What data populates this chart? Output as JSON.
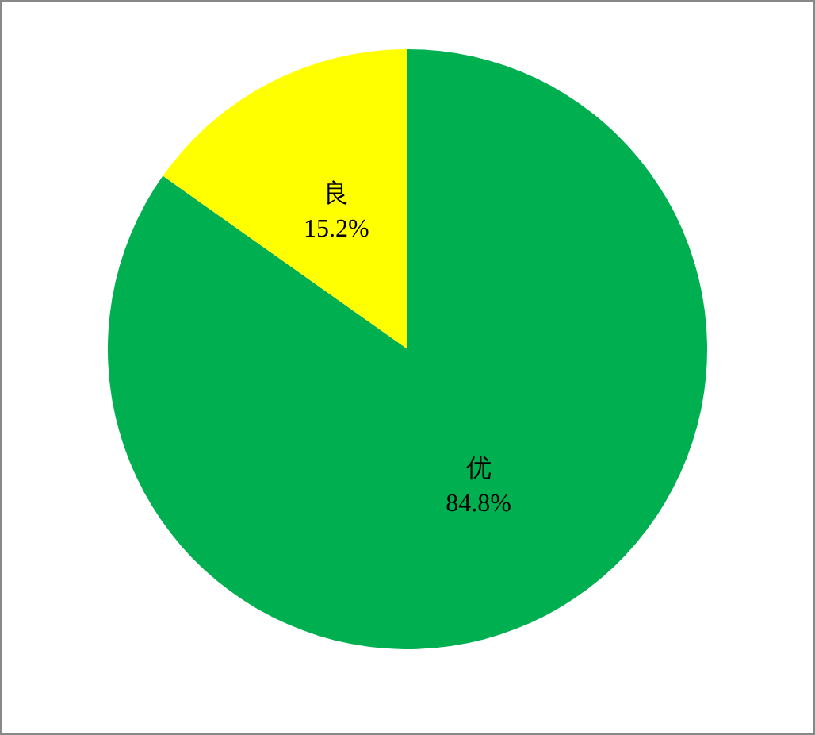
{
  "chart_data": {
    "type": "pie",
    "categories": [
      "优",
      "良"
    ],
    "values": [
      84.8,
      15.2
    ],
    "colors": [
      "#00b050",
      "#ffff00"
    ],
    "value_labels": [
      "84.8%",
      "15.2%"
    ],
    "legend": false
  }
}
